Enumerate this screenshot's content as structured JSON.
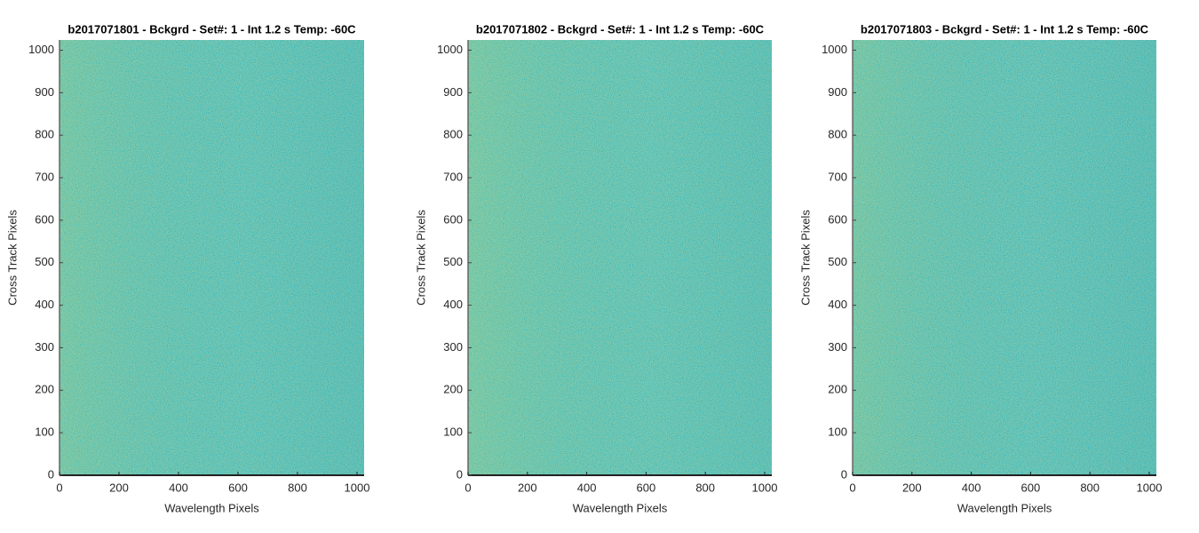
{
  "chart_data": [
    {
      "type": "image",
      "title": "b2017071801 - Bckgrd - Set#: 1 - Int 1.2 s Temp: -60C",
      "x_label": "Wavelength Pixels",
      "y_label": "Cross Track Pixels",
      "xlim": [
        0,
        1024
      ],
      "ylim": [
        0,
        1024
      ],
      "xticks": [
        0,
        200,
        400,
        600,
        800,
        1000
      ],
      "yticks": [
        0,
        100,
        200,
        300,
        400,
        500,
        600,
        700,
        800,
        900,
        1000
      ],
      "color": "#36ad9d"
    },
    {
      "type": "image",
      "title": "b2017071802 - Bckgrd - Set#: 1 - Int 1.2 s Temp: -60C",
      "x_label": "Wavelength Pixels",
      "y_label": "Cross Track Pixels",
      "xlim": [
        0,
        1024
      ],
      "ylim": [
        0,
        1024
      ],
      "xticks": [
        0,
        200,
        400,
        600,
        800,
        1000
      ],
      "yticks": [
        0,
        100,
        200,
        300,
        400,
        500,
        600,
        700,
        800,
        900,
        1000
      ],
      "color": "#3cb09a"
    },
    {
      "type": "image",
      "title": "b2017071803 - Bckgrd - Set#: 1 - Int 1.2 s Temp: -60C",
      "x_label": "Wavelength Pixels",
      "y_label": "Cross Track Pixels",
      "xlim": [
        0,
        1024
      ],
      "ylim": [
        0,
        1024
      ],
      "xticks": [
        0,
        200,
        400,
        600,
        800,
        1000
      ],
      "yticks": [
        0,
        100,
        200,
        300,
        400,
        500,
        600,
        700,
        800,
        900,
        1000
      ],
      "color": "#34ab9e"
    }
  ]
}
